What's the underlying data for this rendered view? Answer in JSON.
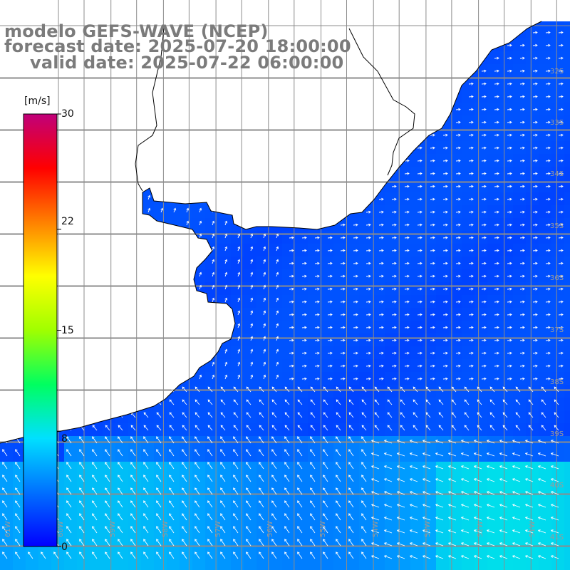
{
  "title": {
    "line1": "modelo GEFS-WAVE (NCEP)",
    "line2": "forecast date: 2025-07-20 18:00:00",
    "line3": "valid date: 2025-07-22 06:00:00"
  },
  "colorbar": {
    "unit": "[m/s]",
    "ticks": [
      {
        "value": 30,
        "label": "30"
      },
      {
        "value": 22,
        "label": "22"
      },
      {
        "value": 15,
        "label": "15"
      },
      {
        "value": 8,
        "label": "8"
      },
      {
        "value": 0,
        "label": "0"
      }
    ],
    "min": 0,
    "max": 30,
    "colors": [
      "#0000ff",
      "#0070ff",
      "#00e0ff",
      "#00ff60",
      "#a0ff00",
      "#ffff00",
      "#ff8000",
      "#ff0000",
      "#c0007a"
    ]
  },
  "map": {
    "lat_labels": [
      "32S",
      "33S",
      "34S",
      "35S",
      "36S",
      "37S",
      "38S",
      "39S",
      "40S",
      "41S"
    ],
    "lon_labels": [
      "61W",
      "60W",
      "59W",
      "58W",
      "57W",
      "56W",
      "55W",
      "54W",
      "53W",
      "52W",
      "51W"
    ],
    "land_color": "#ffffff",
    "grid_color": "#8c8c8c",
    "vector_color": "#ffffff"
  }
}
